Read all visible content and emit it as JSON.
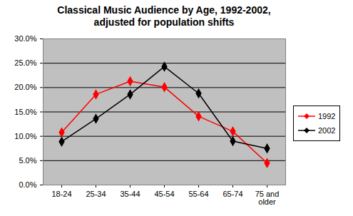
{
  "chart_data": {
    "type": "line",
    "title": "Classical Music Audience by Age, 1992-2002, adjusted for population shifts",
    "categories": [
      "18-24",
      "25-34",
      "35-44",
      "45-54",
      "55-64",
      "65-74",
      "75 and older"
    ],
    "series": [
      {
        "name": "1992",
        "color": "#ff0000",
        "marker": "diamond",
        "values": [
          10.8,
          18.6,
          21.3,
          20.1,
          14.1,
          11.0,
          4.5
        ]
      },
      {
        "name": "2002",
        "color": "#000000",
        "marker": "diamond",
        "values": [
          8.9,
          13.6,
          18.6,
          24.3,
          18.8,
          9.0,
          7.5
        ]
      }
    ],
    "ylim": [
      0,
      30
    ],
    "yticks": [
      {
        "value": 0,
        "label": "0.0%"
      },
      {
        "value": 5,
        "label": "5.0%"
      },
      {
        "value": 10,
        "label": "10.0%"
      },
      {
        "value": 15,
        "label": "15.0%"
      },
      {
        "value": 20,
        "label": "20.0%"
      },
      {
        "value": 25,
        "label": "25.0%"
      },
      {
        "value": 30,
        "label": "30.0%"
      }
    ],
    "grid": true,
    "legend": "right"
  }
}
